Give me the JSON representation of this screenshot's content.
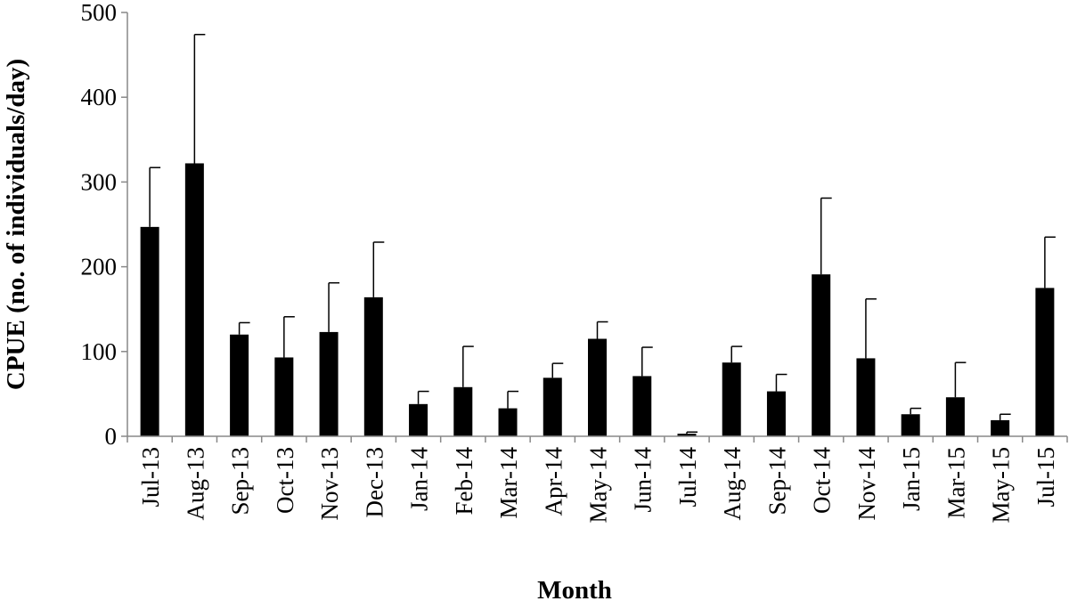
{
  "chart_data": {
    "type": "bar",
    "title": "",
    "xlabel": "Month",
    "ylabel": "CPUE (no. of individuals/day)",
    "ylim": [
      0,
      500
    ],
    "yticks": [
      0,
      100,
      200,
      300,
      400,
      500
    ],
    "grid": false,
    "legend": "none",
    "bar_color": "#000000",
    "axis_color": "#888888",
    "categories": [
      "Jul-13",
      "Aug-13",
      "Sep-13",
      "Oct-13",
      "Nov-13",
      "Dec-13",
      "Jan-14",
      "Feb-14",
      "Mar-14",
      "Apr-14",
      "May-14",
      "Jun-14",
      "Jul-14",
      "Aug-14",
      "Sep-14",
      "Oct-14",
      "Nov-14",
      "Jan-15",
      "Mar-15",
      "May-15",
      "Jul-15"
    ],
    "series": [
      {
        "values": [
          247,
          322,
          120,
          93,
          123,
          164,
          38,
          58,
          33,
          69,
          115,
          71,
          3,
          87,
          53,
          191,
          92,
          26,
          46,
          19,
          175
        ],
        "error_upper": [
          70,
          152,
          14,
          48,
          58,
          65,
          15,
          48,
          20,
          17,
          20,
          34,
          2,
          19,
          20,
          90,
          70,
          7,
          41,
          7,
          60
        ]
      }
    ]
  }
}
